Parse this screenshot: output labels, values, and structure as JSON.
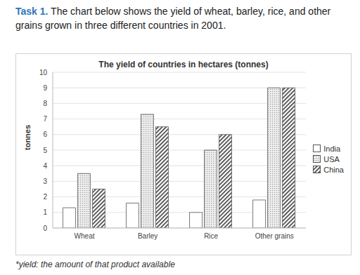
{
  "task_label": "Task 1.",
  "task_text": "The chart below shows the yield of wheat, barley, rice, and other grains grown in three different countries in 2001.",
  "footnote": "*yield: the amount of that product available",
  "chart_data": {
    "type": "bar",
    "title": "The yield of countries in hectares (tonnes)",
    "y_label": "tonnes",
    "categories": [
      "Wheat",
      "Barley",
      "Rice",
      "Other grains"
    ],
    "series": [
      {
        "name": "India",
        "color": "#ffffff",
        "values": [
          1.3,
          1.6,
          1.0,
          1.8
        ]
      },
      {
        "name": "USA",
        "color": "#9a9a9a",
        "values": [
          3.5,
          7.3,
          5.0,
          9.0
        ]
      },
      {
        "name": "China",
        "color": "#3a3a3a",
        "values": [
          2.5,
          6.5,
          6.0,
          9.0
        ]
      }
    ],
    "ylim": [
      0,
      10
    ],
    "yticks": [
      0,
      1,
      2,
      3,
      4,
      5,
      6,
      7,
      8,
      9,
      10
    ],
    "grid": true,
    "legend": "right"
  }
}
